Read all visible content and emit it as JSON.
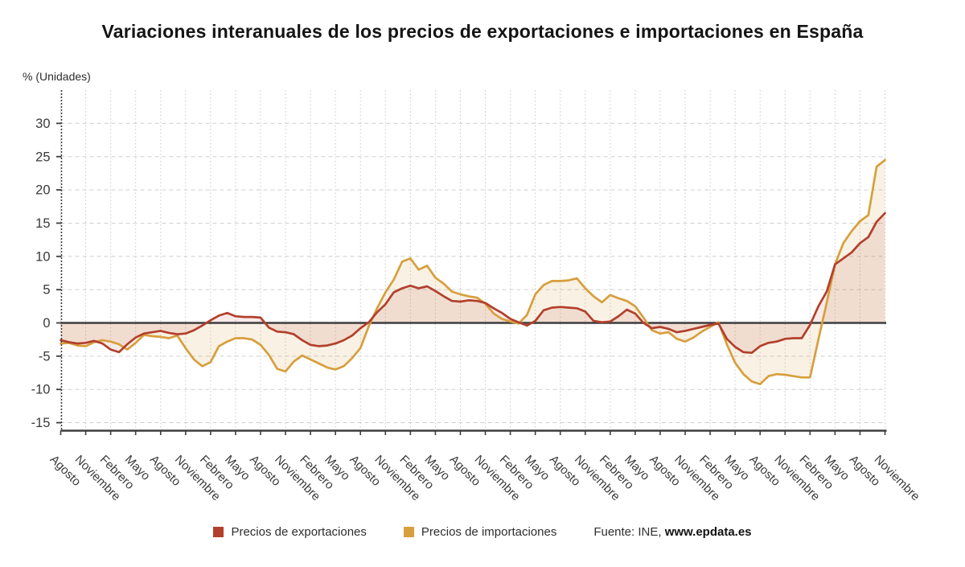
{
  "title": "Variaciones interanuales de los precios de exportaciones e importaciones en España",
  "y_axis_note": "% (Unidades)",
  "legend": {
    "items": [
      {
        "label": "Precios de exportaciones",
        "color": "#b2402c"
      },
      {
        "label": "Precios de importaciones",
        "color": "#d79f3d"
      }
    ],
    "source_prefix": "Fuente: INE, ",
    "source_bold": "www.epdata.es"
  },
  "chart_data": {
    "type": "line",
    "title": "Variaciones interanuales de los precios de exportaciones e importaciones en España",
    "ylabel": "% (Unidades)",
    "ylim": [
      -16,
      35
    ],
    "y_ticks": [
      30,
      25,
      20,
      15,
      10,
      5,
      0,
      -5,
      -10,
      -15
    ],
    "grid": true,
    "baseline": 0,
    "legend_position": "bottom",
    "x_tick_every_months": 3,
    "x_tick_labels": [
      "Agosto",
      "Noviembre",
      "Febrero",
      "Mayo",
      "Agosto",
      "Noviembre",
      "Febrero",
      "Mayo",
      "Agosto",
      "Noviembre",
      "Febrero",
      "Mayo",
      "Agosto",
      "Noviembre",
      "Febrero",
      "Mayo",
      "Agosto",
      "Noviembre",
      "Febrero",
      "Mayo",
      "Agosto",
      "Noviembre",
      "Febrero",
      "Mayo",
      "Agosto",
      "Noviembre",
      "Febrero",
      "Mayo",
      "Agosto",
      "Noviembre",
      "Febrero",
      "Mayo",
      "Agosto",
      "Noviembre"
    ],
    "colors": {
      "grid": "#cfcfcf",
      "axis": "#3d3d3d",
      "tick_text": "#3a3a3a"
    },
    "series": [
      {
        "name": "Precios de importaciones",
        "color": "#d79f3d",
        "fill": "rgba(215,159,61,0.14)",
        "values": [
          -3.1,
          -3.0,
          -3.4,
          -3.5,
          -2.9,
          -2.6,
          -2.8,
          -3.2,
          -4.0,
          -3.0,
          -1.8,
          -2.0,
          -2.1,
          -2.3,
          -1.9,
          -3.8,
          -5.5,
          -6.5,
          -5.9,
          -3.5,
          -2.8,
          -2.3,
          -2.3,
          -2.5,
          -3.3,
          -4.8,
          -6.9,
          -7.3,
          -5.8,
          -4.9,
          -5.5,
          -6.1,
          -6.7,
          -7.0,
          -6.5,
          -5.3,
          -3.8,
          -0.5,
          2.2,
          4.6,
          6.5,
          9.2,
          9.7,
          8.0,
          8.6,
          6.8,
          5.9,
          4.7,
          4.3,
          4.0,
          3.8,
          2.9,
          1.4,
          0.6,
          0.2,
          -0.1,
          1.2,
          4.3,
          5.7,
          6.3,
          6.3,
          6.4,
          6.7,
          5.2,
          4.0,
          3.1,
          4.2,
          3.7,
          3.3,
          2.5,
          0.8,
          -1.1,
          -1.6,
          -1.4,
          -2.4,
          -2.8,
          -2.2,
          -1.3,
          -0.6,
          0.1,
          -3.2,
          -6.0,
          -7.7,
          -8.8,
          -9.2,
          -8.0,
          -7.7,
          -7.8,
          -8.0,
          -8.2,
          -8.2,
          -2.5,
          3.0,
          8.8,
          12.0,
          13.8,
          15.3,
          16.2,
          23.5,
          24.5
        ]
      },
      {
        "name": "Precios de exportaciones",
        "color": "#b2402c",
        "fill": "rgba(178,64,44,0.11)",
        "values": [
          -2.6,
          -2.9,
          -3.1,
          -3.0,
          -2.7,
          -3.1,
          -4.0,
          -4.4,
          -3.2,
          -2.2,
          -1.6,
          -1.4,
          -1.2,
          -1.5,
          -1.7,
          -1.6,
          -1.1,
          -0.4,
          0.4,
          1.1,
          1.5,
          1.0,
          0.9,
          0.9,
          0.8,
          -0.7,
          -1.3,
          -1.4,
          -1.7,
          -2.6,
          -3.3,
          -3.5,
          -3.4,
          -3.1,
          -2.6,
          -1.9,
          -0.8,
          0.1,
          1.6,
          2.8,
          4.6,
          5.2,
          5.6,
          5.2,
          5.5,
          4.8,
          4.0,
          3.3,
          3.2,
          3.4,
          3.3,
          3.0,
          2.2,
          1.5,
          0.6,
          0.1,
          -0.4,
          0.3,
          1.9,
          2.3,
          2.4,
          2.3,
          2.2,
          1.7,
          0.3,
          0.1,
          0.2,
          1.0,
          2.0,
          1.4,
          0.0,
          -0.8,
          -0.6,
          -0.9,
          -1.4,
          -1.2,
          -0.9,
          -0.6,
          -0.3,
          -0.1,
          -2.4,
          -3.6,
          -4.4,
          -4.5,
          -3.5,
          -3.0,
          -2.8,
          -2.4,
          -2.3,
          -2.3,
          -0.3,
          2.5,
          4.7,
          8.8,
          9.7,
          10.6,
          12.0,
          12.9,
          15.2,
          16.5
        ]
      }
    ]
  }
}
